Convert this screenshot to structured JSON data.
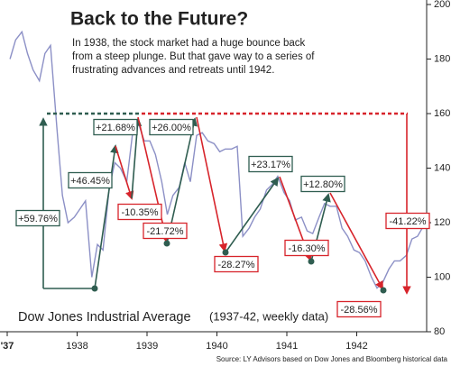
{
  "chart_data": {
    "type": "line",
    "title": "Back to the Future?",
    "subtitle_lines": [
      "In 1938, the stock market had a huge bounce back",
      "from a steep plunge. But that gave way to a series of",
      "frustrating advances and retreats until 1942."
    ],
    "series_label": "Dow Jones Industrial Average",
    "series_note": "(1937-42, weekly data)",
    "source": "Source: LY Advisors based on Dow Jones and Bloomberg historical data",
    "color": "#8c90c6",
    "x": [
      1937.04,
      1937.12,
      1937.21,
      1937.29,
      1937.37,
      1937.46,
      1937.54,
      1937.62,
      1937.71,
      1937.79,
      1937.87,
      1937.96,
      1938.04,
      1938.12,
      1938.21,
      1938.29,
      1938.37,
      1938.46,
      1938.54,
      1938.62,
      1938.71,
      1938.79,
      1938.87,
      1938.96,
      1939.04,
      1939.12,
      1939.21,
      1939.29,
      1939.37,
      1939.46,
      1939.54,
      1939.62,
      1939.71,
      1939.79,
      1939.87,
      1939.96,
      1940.04,
      1940.12,
      1940.21,
      1940.29,
      1940.37,
      1940.46,
      1940.54,
      1940.62,
      1940.71,
      1940.79,
      1940.87,
      1940.96,
      1941.04,
      1941.12,
      1941.21,
      1941.29,
      1941.37,
      1941.46,
      1941.54,
      1941.62,
      1941.71,
      1941.79,
      1941.87,
      1941.96,
      1942.04,
      1942.12,
      1942.21,
      1942.29,
      1942.37,
      1942.46,
      1942.54,
      1942.62,
      1942.71,
      1942.79,
      1942.87,
      1942.96
    ],
    "values": [
      180,
      187,
      190,
      182,
      176,
      172,
      182,
      185,
      155,
      130,
      120,
      122,
      125,
      128,
      100,
      112,
      110,
      133,
      142,
      140,
      135,
      152,
      157,
      150,
      150,
      145,
      135,
      123,
      130,
      133,
      142,
      135,
      152,
      153,
      150,
      149,
      146,
      147,
      147,
      148,
      115,
      118,
      122,
      125,
      132,
      134,
      137,
      131,
      128,
      121,
      122,
      117,
      116,
      122,
      127,
      126,
      126,
      118,
      115,
      110,
      109,
      106,
      100,
      96,
      98,
      103,
      106,
      106,
      108,
      114,
      115,
      119
    ],
    "xlim": [
      1937,
      1943
    ],
    "xticks": [
      {
        "value": 1937,
        "label": "'37"
      },
      1938,
      1939,
      1940,
      1941,
      1942
    ],
    "ylim": [
      80,
      200
    ],
    "yticks": [
      80,
      100,
      120,
      140,
      160,
      180,
      200
    ],
    "grid": false,
    "reference_line": 160,
    "annotations": [
      {
        "text": "+59.76%",
        "color": "#2f5d50"
      },
      {
        "text": "+46.45%",
        "color": "#2f5d50"
      },
      {
        "text": "+21.68%",
        "color": "#2f5d50"
      },
      {
        "text": "-10.35%",
        "color": "#d7242b"
      },
      {
        "text": "+26.00%",
        "color": "#2f5d50"
      },
      {
        "text": "-21.72%",
        "color": "#d7242b"
      },
      {
        "text": "-28.27%",
        "color": "#d7242b"
      },
      {
        "text": "+23.17%",
        "color": "#2f5d50"
      },
      {
        "text": "-16.30%",
        "color": "#d7242b"
      },
      {
        "text": "+12.80%",
        "color": "#2f5d50"
      },
      {
        "text": "-28.56%",
        "color": "#d7242b"
      },
      {
        "text": "-41.22%",
        "color": "#d7242b"
      }
    ]
  }
}
